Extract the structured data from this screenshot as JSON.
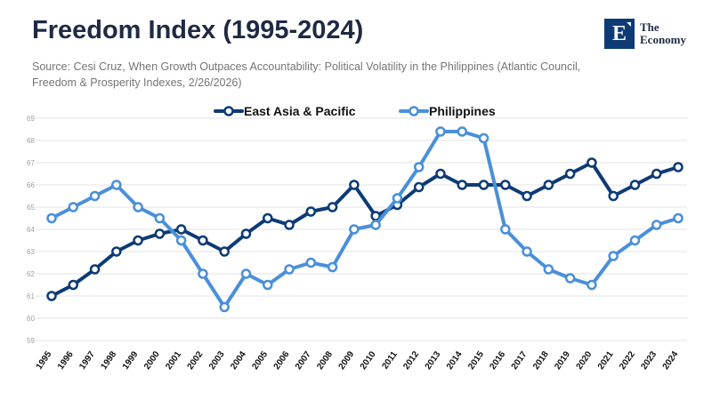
{
  "header": {
    "title": "Freedom Index (1995-2024)",
    "source": "Source: Cesi Cruz, When Growth Outpaces Accountability: Political Volatility in the Philippines (Atlantic Council, Freedom & Prosperity Indexes, 2/26/2026)"
  },
  "logo": {
    "letter": "E",
    "line1": "The",
    "line2": "Economy",
    "color": "#0d3b75"
  },
  "chart_data": {
    "type": "line",
    "title": "Freedom Index (1995-2024)",
    "xlabel": "",
    "ylabel": "",
    "ylim": [
      59,
      69
    ],
    "yticks": [
      59,
      60,
      61,
      62,
      63,
      64,
      65,
      66,
      67,
      68,
      69
    ],
    "categories": [
      "1995",
      "1996",
      "1997",
      "1998",
      "1999",
      "2000",
      "2001",
      "2002",
      "2003",
      "2004",
      "2005",
      "2006",
      "2007",
      "2008",
      "2009",
      "2010",
      "2011",
      "2012",
      "2013",
      "2014",
      "2015",
      "2016",
      "2017",
      "2018",
      "2019",
      "2020",
      "2021",
      "2022",
      "2023",
      "2024"
    ],
    "legend_position": "top-center",
    "series": [
      {
        "name": "East Asia & Pacific",
        "color": "#0d3b75",
        "values": [
          61.0,
          61.5,
          62.2,
          63.0,
          63.5,
          63.8,
          64.0,
          63.5,
          63.0,
          63.8,
          64.5,
          64.2,
          64.8,
          65.0,
          66.0,
          64.6,
          65.1,
          65.9,
          66.5,
          66.0,
          66.0,
          66.0,
          65.5,
          66.0,
          66.5,
          67.0,
          65.5,
          66.0,
          66.5,
          66.8
        ]
      },
      {
        "name": "Philippines",
        "color": "#4a8fd9",
        "values": [
          64.5,
          65.0,
          65.5,
          66.0,
          65.0,
          64.5,
          63.5,
          62.0,
          60.5,
          62.0,
          61.5,
          62.2,
          62.5,
          62.3,
          64.0,
          64.2,
          65.4,
          66.8,
          68.4,
          68.4,
          68.1,
          64.0,
          63.0,
          62.2,
          61.8,
          61.5,
          62.8,
          63.5,
          64.2,
          64.5
        ]
      }
    ]
  }
}
